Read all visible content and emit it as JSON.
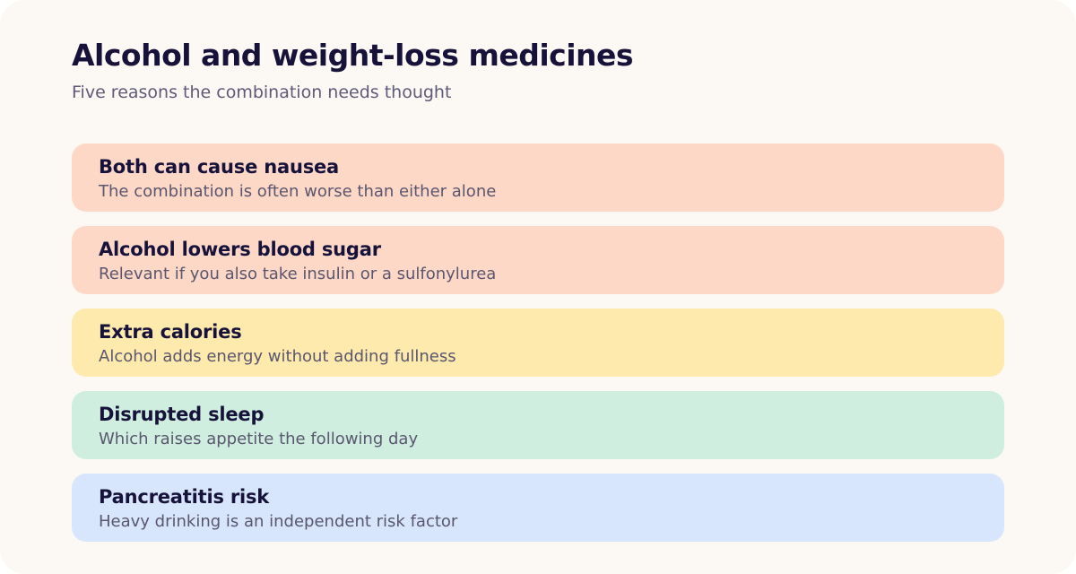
{
  "header": {
    "title": "Alcohol and weight-loss medicines",
    "subtitle": "Five reasons the combination needs thought"
  },
  "items": [
    {
      "title": "Both can cause nausea",
      "description": "The combination is often worse than either alone",
      "color": "#fdd8c7"
    },
    {
      "title": "Alcohol lowers blood sugar",
      "description": "Relevant if you also take insulin or a sulfonylurea",
      "color": "#fdd8c7"
    },
    {
      "title": "Extra calories",
      "description": "Alcohol adds energy without adding fullness",
      "color": "#feeaad"
    },
    {
      "title": "Disrupted sleep",
      "description": "Which raises appetite the following day",
      "color": "#cfeee0"
    },
    {
      "title": "Pancreatitis risk",
      "description": "Heavy drinking is an independent risk factor",
      "color": "#d7e6fd"
    }
  ],
  "colors": {
    "background": "#fcf9f4",
    "title": "#16123a",
    "subtitle": "#5e5a78"
  }
}
